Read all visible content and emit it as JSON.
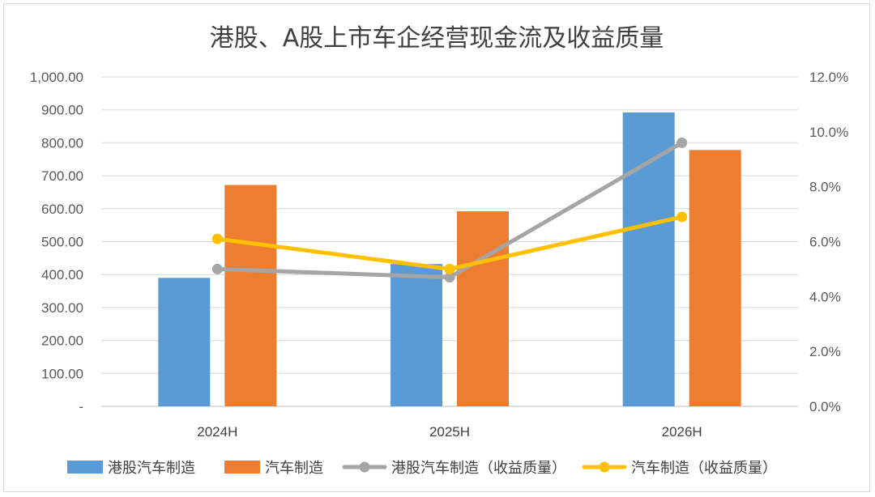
{
  "chart_data": {
    "type": "bar+line",
    "title": "港股、A股上市车企经营现金流及收益质量",
    "categories": [
      "2024H",
      "2025H",
      "2026H"
    ],
    "series": [
      {
        "name": "港股汽车制造",
        "type": "bar",
        "axis": "left",
        "color": "#5b9bd5",
        "values": [
          390,
          432,
          892
        ]
      },
      {
        "name": "汽车制造",
        "type": "bar",
        "axis": "left",
        "color": "#ed7d31",
        "values": [
          672,
          592,
          778
        ]
      },
      {
        "name": "港股汽车制造（收益质量）",
        "type": "line",
        "axis": "right",
        "color": "#a5a5a5",
        "values": [
          5.0,
          4.7,
          9.6
        ]
      },
      {
        "name": "汽车制造（收益质量）",
        "type": "line",
        "axis": "right",
        "color": "#ffc000",
        "values": [
          6.1,
          5.0,
          6.9
        ]
      }
    ],
    "y_left": {
      "ylim": [
        0,
        1000
      ],
      "ticks": [
        0,
        100,
        200,
        300,
        400,
        500,
        600,
        700,
        800,
        900,
        1000
      ],
      "tick_labels": [
        "-",
        "100.00",
        "200.00",
        "300.00",
        "400.00",
        "500.00",
        "600.00",
        "700.00",
        "800.00",
        "900.00",
        "1,000.00"
      ]
    },
    "y_right": {
      "ylim": [
        0,
        12
      ],
      "ticks": [
        0,
        2,
        4,
        6,
        8,
        10,
        12
      ],
      "tick_labels": [
        "0.0%",
        "2.0%",
        "4.0%",
        "6.0%",
        "8.0%",
        "10.0%",
        "12.0%"
      ]
    },
    "grid": true,
    "legend_position": "bottom"
  }
}
